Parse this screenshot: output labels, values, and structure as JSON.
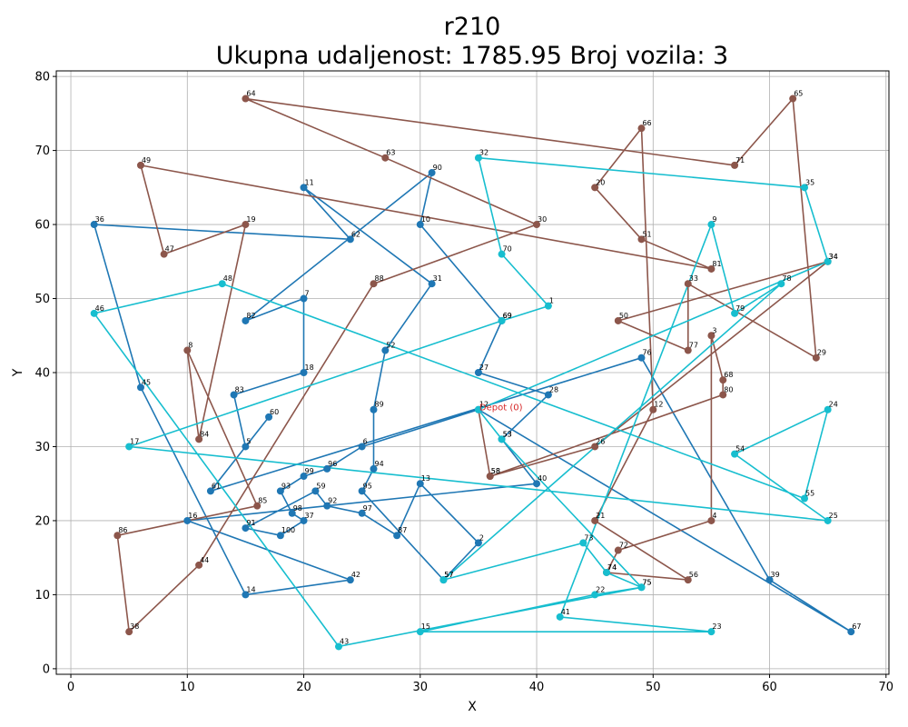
{
  "chart_data": {
    "type": "line",
    "title": "r210",
    "subtitle": "Ukupna udaljenost: 1785.95    Broj vozila: 3",
    "xlabel": "X",
    "ylabel": "Y",
    "xlim": [
      -1.25,
      70.25
    ],
    "ylim": [
      -0.75,
      80.75
    ],
    "xticks": [
      0,
      10,
      20,
      30,
      40,
      50,
      60,
      70
    ],
    "yticks": [
      0,
      10,
      20,
      30,
      40,
      50,
      60,
      70,
      80
    ],
    "grid": true,
    "depot": {
      "x": 35,
      "y": 35,
      "label": "Depot (0)",
      "color": "#d62728"
    },
    "series": [
      {
        "color": "#1f77b4",
        "points": [
          {
            "id": "0",
            "x": 35,
            "y": 35
          },
          {
            "id": "12",
            "x": 35,
            "y": 35
          },
          {
            "id": "6",
            "x": 25,
            "y": 30
          },
          {
            "id": "96",
            "x": 22,
            "y": 27
          },
          {
            "id": "99",
            "x": 20,
            "y": 26
          },
          {
            "id": "93",
            "x": 18,
            "y": 24
          },
          {
            "id": "98",
            "x": 19,
            "y": 21
          },
          {
            "id": "37",
            "x": 20,
            "y": 20
          },
          {
            "id": "100",
            "x": 18,
            "y": 18
          },
          {
            "id": "91",
            "x": 15,
            "y": 19
          },
          {
            "id": "59",
            "x": 21,
            "y": 24
          },
          {
            "id": "92",
            "x": 22,
            "y": 22
          },
          {
            "id": "97",
            "x": 25,
            "y": 21
          },
          {
            "id": "87",
            "x": 28,
            "y": 18
          },
          {
            "id": "13",
            "x": 30,
            "y": 25
          },
          {
            "id": "2",
            "x": 35,
            "y": 17
          },
          {
            "id": "57",
            "x": 32,
            "y": 12
          },
          {
            "id": "95",
            "x": 25,
            "y": 24
          },
          {
            "id": "94",
            "x": 26,
            "y": 27
          },
          {
            "id": "89",
            "x": 26,
            "y": 35
          },
          {
            "id": "52",
            "x": 27,
            "y": 43
          },
          {
            "id": "31",
            "x": 31,
            "y": 52
          },
          {
            "id": "11",
            "x": 20,
            "y": 65
          },
          {
            "id": "62",
            "x": 24,
            "y": 58
          },
          {
            "id": "36",
            "x": 2,
            "y": 60
          },
          {
            "id": "45",
            "x": 6,
            "y": 38
          },
          {
            "id": "14",
            "x": 15,
            "y": 10
          },
          {
            "id": "42",
            "x": 24,
            "y": 12
          },
          {
            "id": "16",
            "x": 10,
            "y": 20
          },
          {
            "id": "40",
            "x": 40,
            "y": 25
          },
          {
            "id": "53",
            "x": 37,
            "y": 31
          },
          {
            "id": "28",
            "x": 41,
            "y": 37
          },
          {
            "id": "27",
            "x": 35,
            "y": 40
          },
          {
            "id": "69",
            "x": 37,
            "y": 47
          },
          {
            "id": "10",
            "x": 30,
            "y": 60
          },
          {
            "id": "90",
            "x": 31,
            "y": 67
          },
          {
            "id": "82",
            "x": 15,
            "y": 47
          },
          {
            "id": "7",
            "x": 20,
            "y": 50
          },
          {
            "id": "18",
            "x": 20,
            "y": 40
          },
          {
            "id": "83",
            "x": 14,
            "y": 37
          },
          {
            "id": "5",
            "x": 15,
            "y": 30
          },
          {
            "id": "60",
            "x": 17,
            "y": 34
          },
          {
            "id": "61",
            "x": 12,
            "y": 24
          },
          {
            "id": "76",
            "x": 49,
            "y": 42
          },
          {
            "id": "39",
            "x": 60,
            "y": 12
          },
          {
            "id": "67",
            "x": 67,
            "y": 5
          },
          {
            "id": "0",
            "x": 35,
            "y": 35
          }
        ]
      },
      {
        "color": "#8c564b",
        "points": [
          {
            "id": "0",
            "x": 35,
            "y": 35
          },
          {
            "id": "58",
            "x": 36,
            "y": 26
          },
          {
            "id": "80",
            "x": 56,
            "y": 37
          },
          {
            "id": "68",
            "x": 56,
            "y": 39
          },
          {
            "id": "3",
            "x": 55,
            "y": 45
          },
          {
            "id": "4",
            "x": 55,
            "y": 20
          },
          {
            "id": "72",
            "x": 47,
            "y": 16
          },
          {
            "id": "74",
            "x": 46,
            "y": 13
          },
          {
            "id": "56",
            "x": 53,
            "y": 12
          },
          {
            "id": "21",
            "x": 45,
            "y": 20
          },
          {
            "id": "12",
            "x": 50,
            "y": 35
          },
          {
            "id": "66",
            "x": 49,
            "y": 73
          },
          {
            "id": "20",
            "x": 45,
            "y": 65
          },
          {
            "id": "51",
            "x": 49,
            "y": 58
          },
          {
            "id": "81",
            "x": 55,
            "y": 54
          },
          {
            "id": "49",
            "x": 6,
            "y": 68
          },
          {
            "id": "47",
            "x": 8,
            "y": 56
          },
          {
            "id": "19",
            "x": 15,
            "y": 60
          },
          {
            "id": "84",
            "x": 11,
            "y": 31
          },
          {
            "id": "8",
            "x": 10,
            "y": 43
          },
          {
            "id": "85",
            "x": 16,
            "y": 22
          },
          {
            "id": "86",
            "x": 4,
            "y": 18
          },
          {
            "id": "38",
            "x": 5,
            "y": 5
          },
          {
            "id": "44",
            "x": 11,
            "y": 14
          },
          {
            "id": "88",
            "x": 26,
            "y": 52
          },
          {
            "id": "30",
            "x": 40,
            "y": 60
          },
          {
            "id": "63",
            "x": 27,
            "y": 69
          },
          {
            "id": "64",
            "x": 15,
            "y": 77
          },
          {
            "id": "71",
            "x": 57,
            "y": 68
          },
          {
            "id": "65",
            "x": 62,
            "y": 77
          },
          {
            "id": "29",
            "x": 64,
            "y": 42
          },
          {
            "id": "33",
            "x": 53,
            "y": 52
          },
          {
            "id": "77",
            "x": 53,
            "y": 43
          },
          {
            "id": "50",
            "x": 47,
            "y": 47
          },
          {
            "id": "34",
            "x": 65,
            "y": 55
          },
          {
            "id": "26",
            "x": 45,
            "y": 30
          },
          {
            "id": "58",
            "x": 36,
            "y": 26
          }
        ]
      },
      {
        "color": "#17becf",
        "points": [
          {
            "id": "0",
            "x": 35,
            "y": 35
          },
          {
            "id": "53",
            "x": 37,
            "y": 31
          },
          {
            "id": "75",
            "x": 49,
            "y": 11
          },
          {
            "id": "22",
            "x": 45,
            "y": 10
          },
          {
            "id": "15",
            "x": 30,
            "y": 5
          },
          {
            "id": "23",
            "x": 55,
            "y": 5
          },
          {
            "id": "41",
            "x": 42,
            "y": 7
          },
          {
            "id": "9",
            "x": 55,
            "y": 60
          },
          {
            "id": "79",
            "x": 57,
            "y": 48
          },
          {
            "id": "78",
            "x": 61,
            "y": 52
          },
          {
            "id": "57",
            "x": 32,
            "y": 12
          },
          {
            "id": "73",
            "x": 44,
            "y": 17
          },
          {
            "id": "74",
            "x": 46,
            "y": 13
          },
          {
            "id": "75",
            "x": 49,
            "y": 11
          },
          {
            "id": "43",
            "x": 23,
            "y": 3
          },
          {
            "id": "46",
            "x": 2,
            "y": 48
          },
          {
            "id": "48",
            "x": 13,
            "y": 52
          },
          {
            "id": "55",
            "x": 63,
            "y": 23
          },
          {
            "id": "24",
            "x": 65,
            "y": 35
          },
          {
            "id": "54",
            "x": 57,
            "y": 29
          },
          {
            "id": "25",
            "x": 65,
            "y": 20
          },
          {
            "id": "17",
            "x": 5,
            "y": 30
          },
          {
            "id": "69",
            "x": 37,
            "y": 47
          },
          {
            "id": "1",
            "x": 41,
            "y": 49
          },
          {
            "id": "70",
            "x": 37,
            "y": 56
          },
          {
            "id": "32",
            "x": 35,
            "y": 69
          },
          {
            "id": "35",
            "x": 63,
            "y": 65
          },
          {
            "id": "34",
            "x": 65,
            "y": 55
          },
          {
            "id": "0",
            "x": 35,
            "y": 35
          }
        ]
      }
    ]
  }
}
